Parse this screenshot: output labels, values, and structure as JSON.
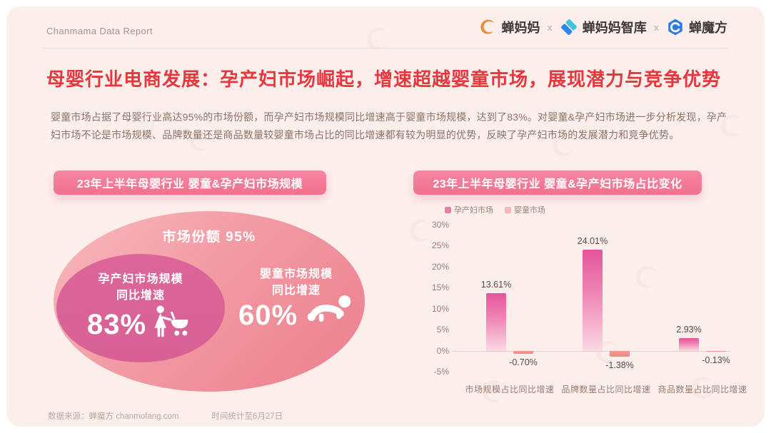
{
  "page": {
    "background": "#ffffff",
    "panel_background": "#fcefeb",
    "accent_red": "#e4373e",
    "accent_pink": "#f1708e"
  },
  "header": {
    "report_label": "Chanmama Data Report",
    "separator": "x",
    "brands": [
      {
        "label": "蝉妈妈",
        "icon": "chanmama-logo",
        "icon_color": "#ee8a3a"
      },
      {
        "label": "蝉妈妈智库",
        "icon": "chanmama-zhiku-logo",
        "icon_color": "#35b9e6"
      },
      {
        "label": "蝉魔方",
        "icon": "chanmofang-logo",
        "icon_color": "#2f7bdc"
      }
    ]
  },
  "title": {
    "text": "母婴行业电商发展：孕产妇市场崛起，增速超越婴童市场，展现潜力与竞争优势"
  },
  "intro": {
    "text": "婴童市场占据了母婴行业高达95%的市场份额，而孕产妇市场规模同比增速高于婴童市场规模，达到了83%。对婴童&孕产妇市场进一步分析发现，孕产妇市场不论是市场规模、品牌数量还是商品数量较婴童市场占比的同比增速都有较为明显的优势，反映了孕产妇市场的发展潜力和竞争优势。"
  },
  "panels": {
    "left": {
      "header": "23年上半年母婴行业 婴童&孕产妇市场规模",
      "bubble": {
        "share_label": "市场份额 95%",
        "preg": {
          "title": "孕产妇市场规模",
          "subtitle": "同比增速",
          "value": "83%",
          "icon": "woman-with-stroller-icon"
        },
        "baby": {
          "title": "婴童市场规模",
          "subtitle": "同比增速",
          "value": "60%",
          "icon": "crawling-baby-icon"
        },
        "outer_color": "#ee8693",
        "inner_color": "#d96297"
      }
    },
    "right": {
      "header": "23年上半年母婴行业 婴童&孕产妇市场占比变化"
    }
  },
  "chart_data": {
    "type": "bar",
    "title": "23年上半年母婴行业 婴童&孕产妇市场占比变化",
    "categories": [
      "市场规模占比同比增速",
      "品牌数量占比同比增速",
      "商品数量占比同比增速"
    ],
    "series": [
      {
        "name": "孕产妇市场",
        "values": [
          13.61,
          24.01,
          2.93
        ],
        "labels": [
          "13.61%",
          "24.01%",
          "2.93%"
        ],
        "color": "#e87fa8"
      },
      {
        "name": "婴童市场",
        "values": [
          -0.7,
          -1.38,
          -0.13
        ],
        "labels": [
          "-0.70%",
          "-1.38%",
          "-0.13%"
        ],
        "color": "#f5b6ba"
      }
    ],
    "ylim": [
      -5,
      30
    ],
    "yticks": [
      "30%",
      "25%",
      "20%",
      "15%",
      "10%",
      "5%",
      "0%",
      "-5%"
    ],
    "xlabel": "",
    "ylabel": "",
    "grid": false,
    "legend_position": "top"
  },
  "footer": {
    "source": "数据来源：蝉魔方 chanmofang.com",
    "time": "时间统计至6月27日"
  }
}
